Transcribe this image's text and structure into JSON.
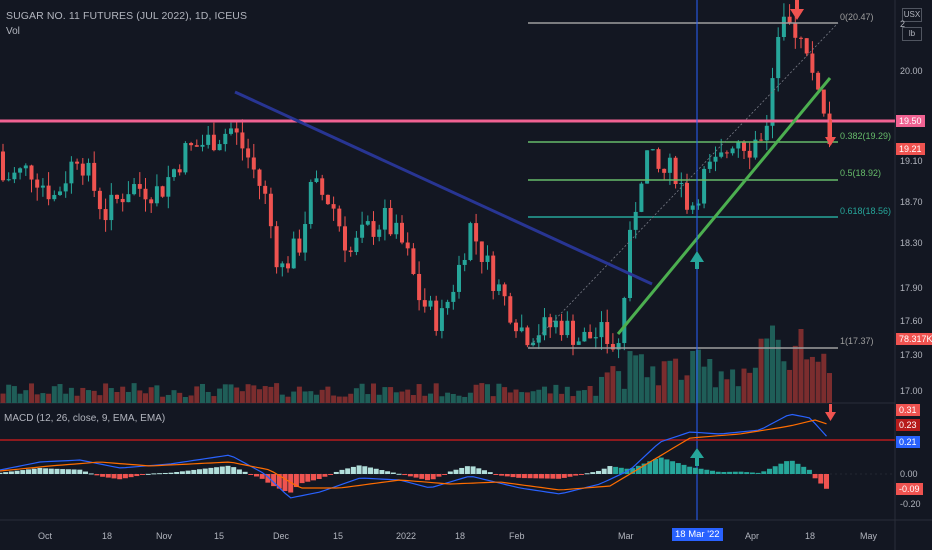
{
  "header": {
    "title": "SUGAR NO. 11 FUTURES (JUL 2022), 1D, ICEUS",
    "volume_label": "Vol",
    "macd_label": "MACD (12, 26, close, 9, EMA, EMA)"
  },
  "price_axis": {
    "ticks": [
      "2",
      "20.00",
      "19.10",
      "18.70",
      "18.30",
      "17.90",
      "17.60",
      "17.30",
      "17.00"
    ],
    "unit_top": "USX",
    "unit_bottom": "lb"
  },
  "tags": {
    "resistance": "19.50",
    "current": "19.21",
    "volume": "78.317K",
    "macd_a": "0.31",
    "macd_b": "0.23",
    "macd_c": "0.21",
    "macd_hist": "-0.09"
  },
  "macd_axis": {
    "ticks": [
      "0.00",
      "-0.20"
    ]
  },
  "fib": {
    "f0": "0(20.47)",
    "f382": "0.382(19.29)",
    "f5": "0.5(18.92)",
    "f618": "0.618(18.56)",
    "f1": "1(17.37)"
  },
  "time_axis": {
    "ticks": [
      "Oct",
      "18",
      "Nov",
      "15",
      "Dec",
      "15",
      "2022",
      "18",
      "Feb",
      "Mar",
      "Apr",
      "18",
      "May"
    ],
    "cursor": "18 Mar '22"
  },
  "colors": {
    "bg": "#131722",
    "up": "#26a69a",
    "down": "#ef5350",
    "resistance": "#f06292",
    "trend_blue": "#283593",
    "trend_green": "#4caf50",
    "cursor_tag": "#2962ff"
  },
  "chart_data": {
    "type": "candlestick",
    "x": [
      "Oct",
      "Nov",
      "Dec",
      "2022",
      "Feb",
      "Mar",
      "18 Mar '22",
      "Apr",
      "May"
    ],
    "resistance_level": 19.5,
    "last_price": 19.21,
    "fibonacci": {
      "0": 20.47,
      "0.382": 19.29,
      "0.5": 18.92,
      "0.618": 18.56,
      "1": 17.37
    },
    "indicators": [
      "Vol",
      "MACD (12, 26, close, 9, EMA, EMA)"
    ]
  }
}
